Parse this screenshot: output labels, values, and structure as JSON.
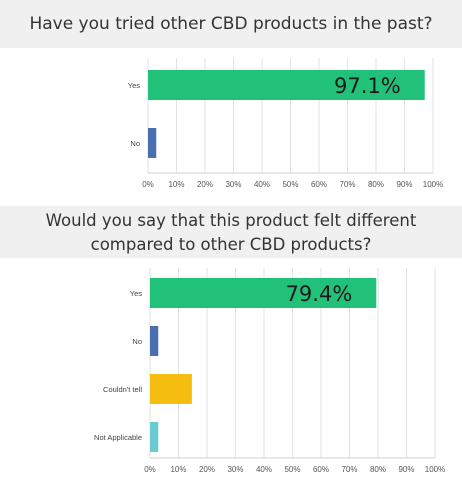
{
  "chart_data": [
    {
      "type": "bar",
      "orientation": "horizontal",
      "title": "Have you tried other CBD products in the past?",
      "categories": [
        "Yes",
        "No"
      ],
      "values": [
        97.1,
        2.9
      ],
      "bar_colors": [
        "#21c17a",
        "#4a6fb0"
      ],
      "data_labels": [
        "97.1%",
        ""
      ],
      "xlim": [
        0,
        100
      ],
      "xticks": [
        "0%",
        "10%",
        "20%",
        "30%",
        "40%",
        "50%",
        "60%",
        "70%",
        "80%",
        "90%",
        "100%"
      ],
      "grid": true
    },
    {
      "type": "bar",
      "orientation": "horizontal",
      "title_lines": [
        "Would you say that this product felt different",
        "compared to other CBD products?"
      ],
      "categories": [
        "Yes",
        "No",
        "Couldn't tell",
        "Not Applicable"
      ],
      "values": [
        79.4,
        2.9,
        14.7,
        2.9
      ],
      "bar_colors": [
        "#21c17a",
        "#4a6fb0",
        "#f5bd0f",
        "#6bcbd0"
      ],
      "data_labels": [
        "79.4%",
        "",
        "",
        ""
      ],
      "xlim": [
        0,
        100
      ],
      "xticks": [
        "0%",
        "10%",
        "20%",
        "30%",
        "40%",
        "50%",
        "60%",
        "70%",
        "80%",
        "90%",
        "100%"
      ],
      "grid": true
    }
  ]
}
